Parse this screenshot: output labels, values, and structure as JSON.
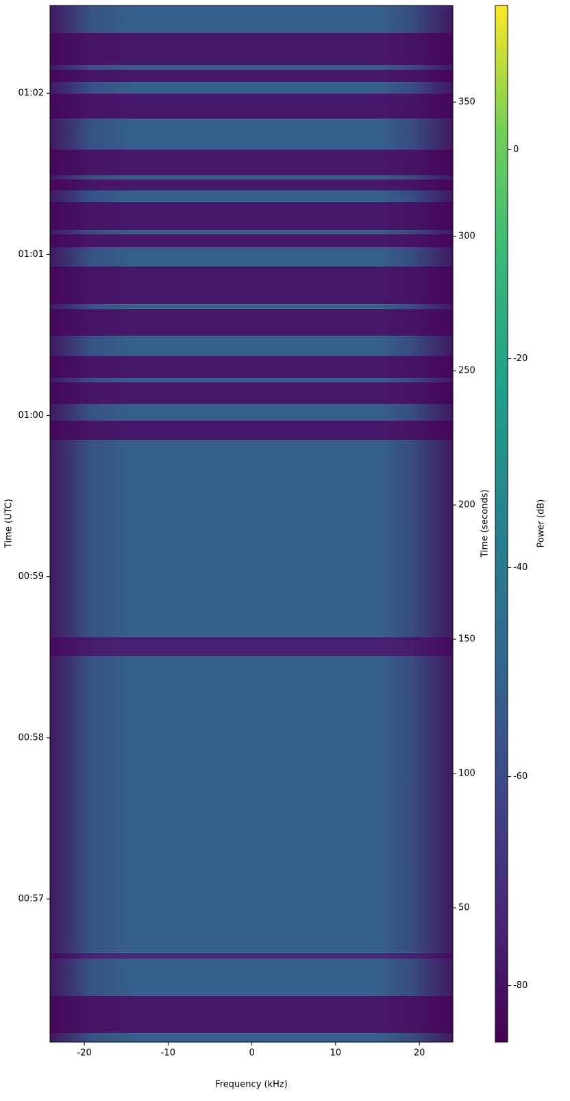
{
  "chart_data": {
    "type": "spectrogram",
    "xlabel": "Frequency (kHz)",
    "ylabel": "Time (UTC)",
    "y2label": "Time (seconds)",
    "colorbar_label": "Power (dB)",
    "colormap": "viridis",
    "xlim": [
      -24.1,
      24
    ],
    "xticks": [
      -20,
      -10,
      0,
      10,
      20
    ],
    "ylim": [
      0,
      386
    ],
    "yticks": [
      {
        "value": 53.3,
        "label": "00:57"
      },
      {
        "value": 113.3,
        "label": "00:58"
      },
      {
        "value": 173.3,
        "label": "00:59"
      },
      {
        "value": 233.3,
        "label": "01:00"
      },
      {
        "value": 293.3,
        "label": "01:01"
      },
      {
        "value": 353.3,
        "label": "01:02"
      }
    ],
    "y2lim": [
      0,
      386
    ],
    "y2ticks": [
      50,
      100,
      150,
      200,
      250,
      300,
      350
    ],
    "clim": [
      -85.4,
      13.8
    ],
    "cticks": [
      -80,
      -60,
      -40,
      -20,
      0
    ],
    "time_edges": [
      0,
      3.3,
      17.1,
      30.9,
      33.2,
      143.6,
      150.8,
      224.2,
      231.4,
      237.5,
      245.7,
      247.2,
      255.6,
      263.0,
      273.0,
      274.7,
      288.8,
      295.9,
      300.8,
      302.3,
      312.8,
      317.1,
      321.2,
      322.7,
      332.4,
      343.9,
      353.3,
      357.4,
      362.2,
      363.8,
      375.8,
      386.0
    ],
    "values": [
      -52,
      -78,
      -52,
      -72,
      -52,
      -75,
      -52,
      -78,
      -52,
      -78,
      -52,
      -78,
      -52,
      -78,
      -52,
      -78,
      -52,
      -78,
      -52,
      -78,
      -52,
      -78,
      -52,
      -78,
      -52,
      -78,
      -52,
      -78,
      -52,
      -78,
      -52
    ]
  }
}
